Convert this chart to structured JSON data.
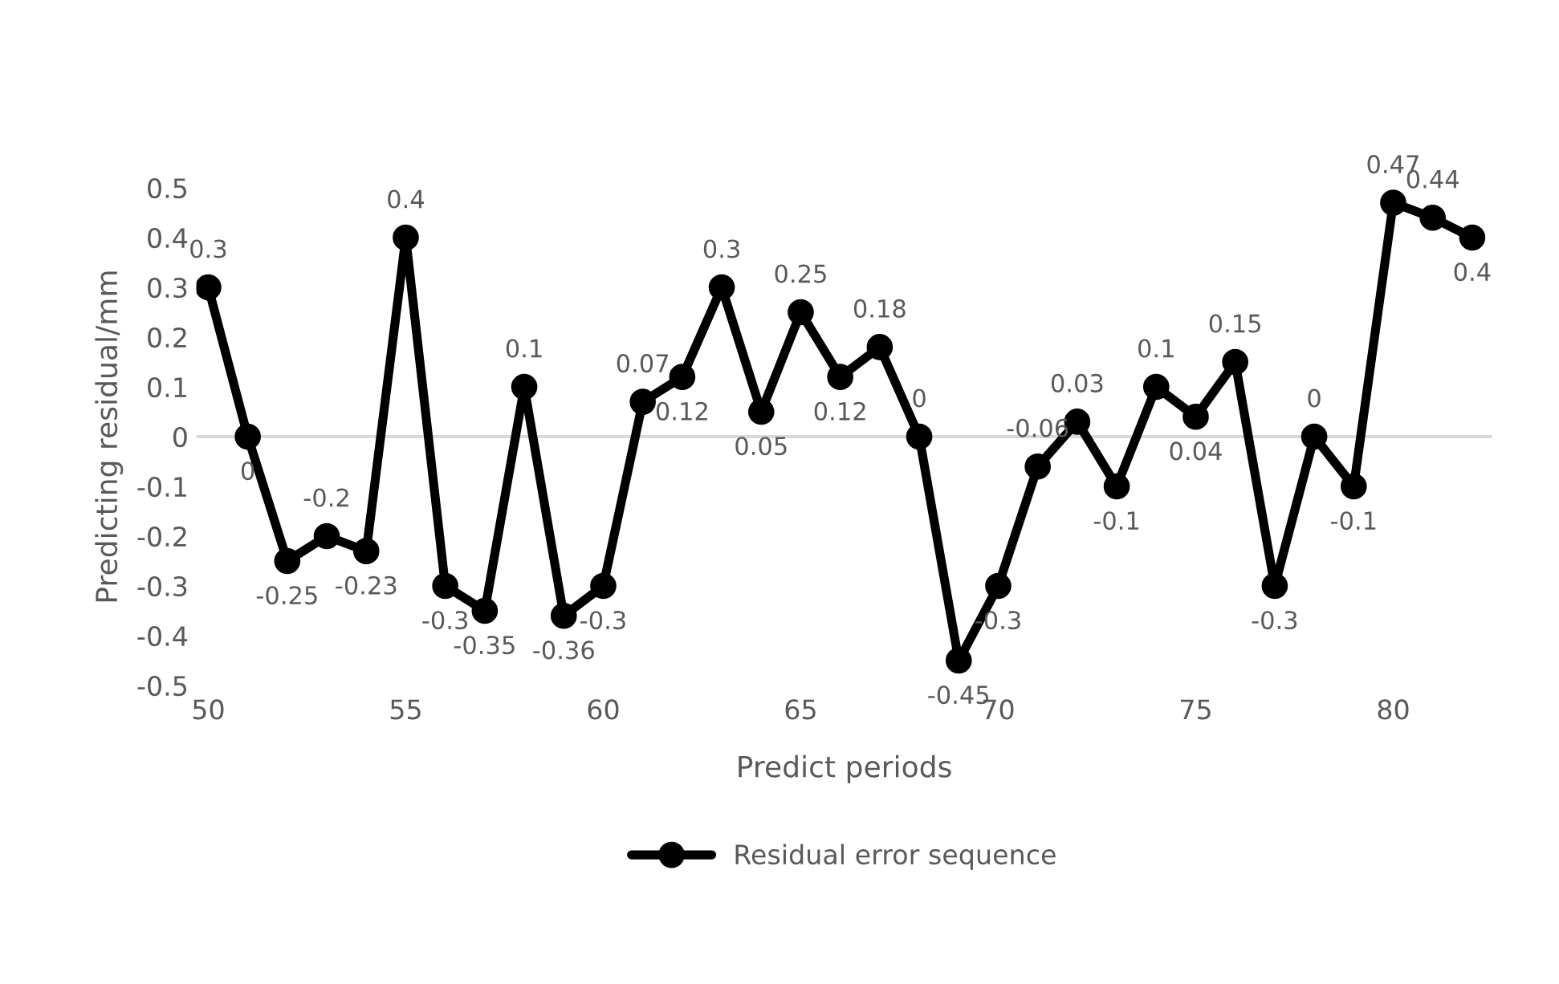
{
  "chart_data": {
    "type": "line",
    "xlabel": "Predict periods",
    "ylabel": "Predicting residual/mm",
    "x": [
      50,
      51,
      52,
      53,
      54,
      55,
      56,
      57,
      58,
      59,
      60,
      61,
      62,
      63,
      64,
      65,
      66,
      67,
      68,
      69,
      70,
      71,
      72,
      73,
      74,
      75,
      76,
      77,
      78,
      79,
      80,
      81,
      82
    ],
    "series": [
      {
        "name": "Residual error sequence",
        "color": "#000000",
        "values": [
          0.3,
          0,
          -0.25,
          -0.2,
          -0.23,
          0.4,
          -0.3,
          -0.35,
          0.1,
          -0.36,
          -0.3,
          0.07,
          0.12,
          0.3,
          0.05,
          0.25,
          0.12,
          0.18,
          0,
          -0.45,
          -0.3,
          -0.06,
          0.03,
          -0.1,
          0.1,
          0.04,
          0.15,
          -0.3,
          0,
          -0.1,
          0.47,
          0.44,
          0.4
        ]
      }
    ],
    "xlim": [
      49.7,
      82.5
    ],
    "xticks": [
      50,
      55,
      60,
      65,
      70,
      75,
      80
    ],
    "ylim": [
      -0.5,
      0.5
    ],
    "yticks": [
      -0.5,
      -0.4,
      -0.3,
      -0.2,
      -0.1,
      0,
      0.1,
      0.2,
      0.3,
      0.4,
      0.5
    ],
    "ref_lines": [
      {
        "axis": "y",
        "value": 0,
        "color": "#d9d9d9"
      }
    ],
    "data_labels": true,
    "marker": "circle",
    "line_style": "solid",
    "grid": false,
    "legend": "bottom"
  }
}
